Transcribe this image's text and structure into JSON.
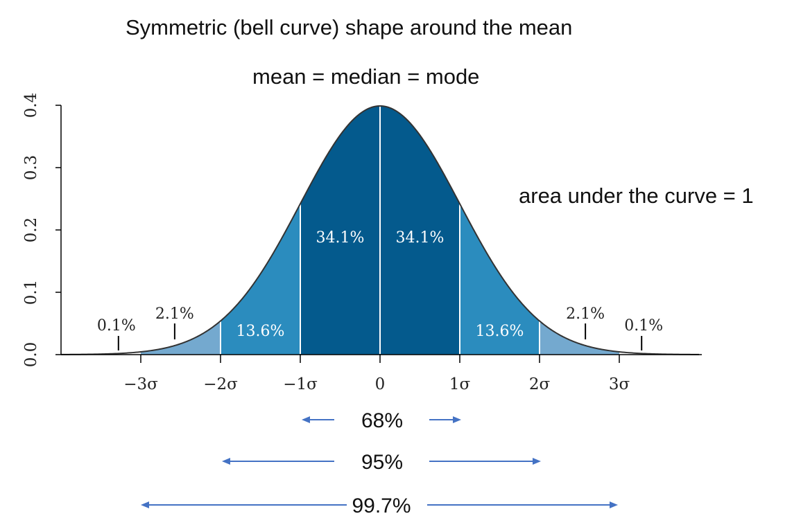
{
  "title": "Symmetric (bell curve) shape around the mean",
  "subtitle": "mean = median = mode",
  "annotation": "area under the curve = 1",
  "colors": {
    "center": "#045a8d",
    "mid": "#2b8cbe",
    "tail": "#74a9cf",
    "curve": "#333333",
    "arrow": "#4472c4",
    "axis": "#000000"
  },
  "chart_data": {
    "type": "area",
    "xlim": [
      -4,
      4
    ],
    "ylim": [
      0,
      0.4
    ],
    "y_ticks": [
      0.0,
      0.1,
      0.2,
      0.3,
      0.4
    ],
    "y_tick_labels": [
      "0.0",
      "0.1",
      "0.2",
      "0.3",
      "0.4"
    ],
    "x_ticks": [
      -3,
      -2,
      -1,
      0,
      1,
      2,
      3
    ],
    "x_tick_labels": [
      "−3σ",
      "−2σ",
      "−1σ",
      "0",
      "1σ",
      "2σ",
      "3σ"
    ],
    "regions": [
      {
        "from": -3,
        "to": -2,
        "label": "2.1%",
        "shade": "tail"
      },
      {
        "from": -2,
        "to": -1,
        "label": "13.6%",
        "shade": "mid"
      },
      {
        "from": -1,
        "to": 0,
        "label": "34.1%",
        "shade": "center"
      },
      {
        "from": 0,
        "to": 1,
        "label": "34.1%",
        "shade": "center"
      },
      {
        "from": 1,
        "to": 2,
        "label": "13.6%",
        "shade": "mid"
      },
      {
        "from": 2,
        "to": 3,
        "label": "2.1%",
        "shade": "tail"
      }
    ],
    "outer_tails": [
      {
        "side": "left",
        "label": "0.1%"
      },
      {
        "side": "right",
        "label": "0.1%"
      }
    ],
    "ranges": [
      {
        "from": -1,
        "to": 1,
        "label": "68%"
      },
      {
        "from": -2,
        "to": 2,
        "label": "95%"
      },
      {
        "from": -3,
        "to": 3,
        "label": "99.7%"
      }
    ]
  }
}
